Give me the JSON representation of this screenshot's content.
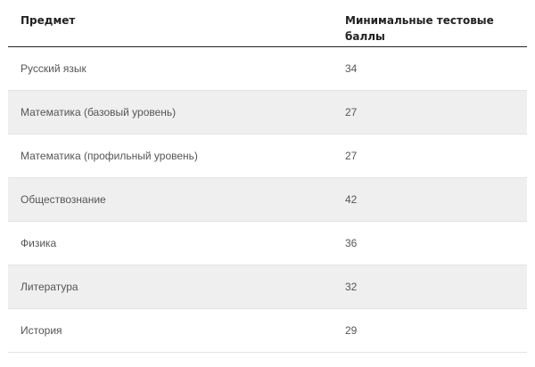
{
  "table": {
    "headers": {
      "subject": "Предмет",
      "score": "Минимальные тестовые баллы"
    },
    "rows": [
      {
        "subject": "Русский язык",
        "score": "34"
      },
      {
        "subject": "Математика (базовый уровень)",
        "score": "27"
      },
      {
        "subject": "Математика (профильный уровень)",
        "score": "27"
      },
      {
        "subject": "Обществознание",
        "score": "42"
      },
      {
        "subject": "Физика",
        "score": "36"
      },
      {
        "subject": "Литература",
        "score": "32"
      },
      {
        "subject": "История",
        "score": "29"
      }
    ]
  }
}
